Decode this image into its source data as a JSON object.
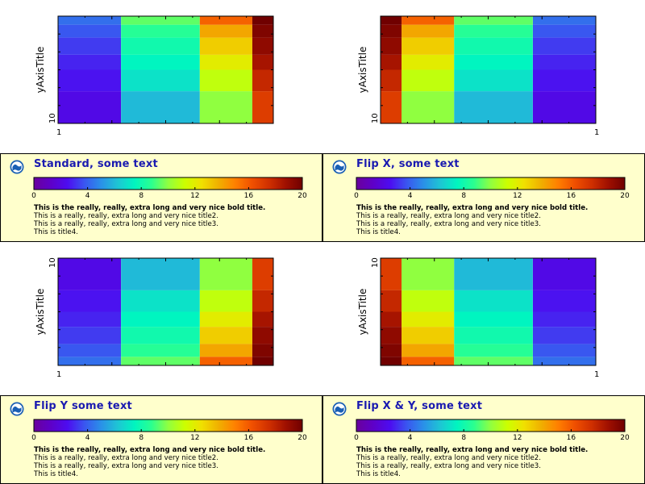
{
  "chart_data": [
    {
      "type": "heatmap",
      "name": "standard",
      "flip_x": false,
      "flip_y": false,
      "ylabel": "yAxisTitle",
      "x_tick_label": "1",
      "y_tick_label": "10",
      "legend": {
        "title": "Standard, some text",
        "bold_line": "This is the really, really, extra long and very nice bold title.",
        "lines": [
          "This is a really, really, extra long and very nice title2.",
          "This is a really, really, extra long and very nice title3.",
          "This is title4."
        ]
      }
    },
    {
      "type": "heatmap",
      "name": "flip-x",
      "flip_x": true,
      "flip_y": false,
      "ylabel": "yAxisTitle",
      "x_tick_label": "1",
      "y_tick_label": "10",
      "legend": {
        "title": "Flip X, some text",
        "bold_line": "This is the really, really, extra long and very nice bold title.",
        "lines": [
          "This is a really, really, extra long and very nice title2.",
          "This is a really, really, extra long and very nice title3.",
          "This is title4."
        ]
      }
    },
    {
      "type": "heatmap",
      "name": "flip-y",
      "flip_x": false,
      "flip_y": true,
      "ylabel": "yAxisTitle",
      "x_tick_label": "1",
      "y_tick_label": "10",
      "legend": {
        "title": "Flip Y some text",
        "bold_line": "This is the really, really, extra long and very nice bold title.",
        "lines": [
          "This is a really, really, extra long and very nice title2.",
          "This is a really, really, extra long and very nice title3.",
          "This is title4."
        ]
      }
    },
    {
      "type": "heatmap",
      "name": "flip-xy",
      "flip_x": true,
      "flip_y": true,
      "ylabel": "yAxisTitle",
      "x_tick_label": "1",
      "y_tick_label": "10",
      "legend": {
        "title": "Flip X & Y, some text",
        "bold_line": "This is the really, really, extra long and very nice bold title.",
        "lines": [
          "This is a really, really, extra long and very nice title2.",
          "This is a really, really, extra long and very nice title3.",
          "This is title4."
        ]
      }
    }
  ],
  "grid": {
    "x_edges": [
      1,
      2.2,
      3.7,
      4.7,
      5.1
    ],
    "y_edges": [
      1,
      2.5,
      3.5,
      4.2,
      5,
      5.6,
      6
    ],
    "values": [
      [
        2.2,
        6.0,
        10.0,
        17.0
      ],
      [
        2.6,
        7.0,
        11.0,
        17.8
      ],
      [
        2.9,
        7.5,
        12.0,
        18.6
      ],
      [
        3.3,
        8.0,
        13.0,
        19.2
      ],
      [
        3.8,
        8.6,
        14.0,
        19.6
      ],
      [
        4.3,
        9.4,
        15.8,
        20.0
      ]
    ]
  },
  "colorbar": {
    "min": 0,
    "max": 20,
    "ticks": [
      0,
      4,
      8,
      12,
      16,
      20
    ],
    "tick_labels": [
      "0",
      "4",
      "8",
      "12",
      "16",
      "20"
    ]
  },
  "colormap": [
    "#6a009d",
    "#5e00c8",
    "#4d0cf0",
    "#3a55f0",
    "#2a90e8",
    "#1ec5d4",
    "#00f5c0",
    "#2aff90",
    "#90ff40",
    "#ccff00",
    "#f0e000",
    "#f0b000",
    "#ff8000",
    "#f05000",
    "#d03000",
    "#a01000",
    "#700000"
  ]
}
